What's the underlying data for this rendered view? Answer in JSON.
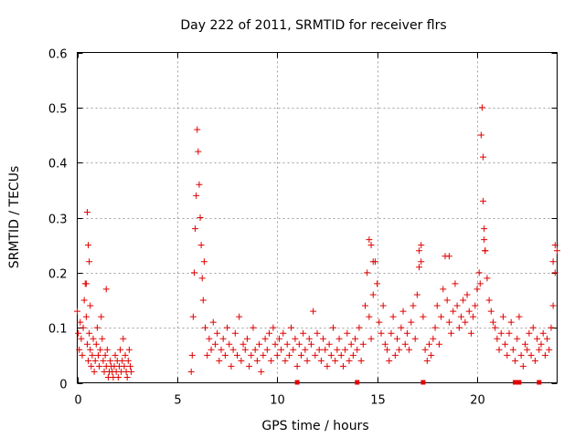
{
  "chart_data": {
    "type": "scatter",
    "title": "Day 222 of 2011, SRMTID for receiver flrs",
    "xlabel": "GPS time / hours",
    "ylabel": "SRMTID / TECUs",
    "xlim": [
      0,
      24
    ],
    "ylim": [
      0,
      0.6
    ],
    "x_ticks": [
      0,
      5,
      10,
      15,
      20
    ],
    "x_tick_labels": [
      "0",
      "5",
      "10",
      "15",
      "20"
    ],
    "y_ticks": [
      0,
      0.1,
      0.2,
      0.3,
      0.4,
      0.5,
      0.6
    ],
    "y_tick_labels": [
      "0",
      "0.1",
      "0.2",
      "0.3",
      "0.4",
      "0.5",
      "0.6"
    ],
    "grid": true,
    "marker": "+",
    "color": "#e00000",
    "series": [
      {
        "name": "SRMTID",
        "x": [
          0.0,
          0.05,
          0.1,
          0.15,
          0.2,
          0.25,
          0.3,
          0.35,
          0.4,
          0.45,
          0.5,
          0.55,
          0.6,
          0.65,
          0.7,
          0.75,
          0.8,
          0.85,
          0.9,
          0.95,
          1.0,
          1.05,
          1.1,
          1.15,
          1.2,
          1.25,
          1.3,
          1.35,
          1.4,
          1.45,
          1.5,
          1.55,
          1.6,
          1.65,
          1.7,
          1.75,
          1.8,
          1.85,
          1.9,
          1.95,
          2.0,
          2.05,
          2.1,
          2.15,
          2.2,
          2.25,
          2.3,
          2.35,
          2.4,
          2.45,
          2.5,
          2.55,
          2.6,
          2.65,
          2.7,
          0.5,
          0.55,
          0.6,
          0.45,
          0.65,
          1.45,
          5.7,
          5.75,
          5.8,
          5.85,
          5.9,
          5.95,
          6.0,
          6.05,
          6.1,
          6.15,
          6.2,
          6.25,
          6.3,
          6.35,
          6.4,
          6.5,
          6.6,
          6.7,
          6.8,
          6.9,
          7.0,
          7.1,
          7.2,
          7.3,
          7.4,
          7.5,
          7.6,
          7.7,
          7.8,
          7.9,
          8.0,
          8.1,
          8.2,
          8.3,
          8.4,
          8.5,
          8.6,
          8.7,
          8.8,
          8.9,
          9.0,
          9.1,
          9.2,
          9.3,
          9.4,
          9.5,
          9.6,
          9.7,
          9.8,
          9.9,
          10.0,
          10.1,
          10.2,
          10.3,
          10.4,
          10.5,
          10.6,
          10.7,
          10.8,
          10.9,
          11.0,
          11.1,
          11.2,
          11.3,
          11.4,
          11.5,
          11.6,
          11.7,
          11.8,
          11.9,
          12.0,
          12.1,
          12.2,
          12.3,
          12.4,
          12.5,
          12.6,
          12.7,
          12.8,
          12.9,
          13.0,
          13.1,
          13.2,
          13.3,
          13.4,
          13.5,
          13.6,
          13.7,
          13.8,
          13.9,
          14.0,
          14.1,
          14.2,
          14.3,
          14.4,
          14.5,
          14.6,
          14.7,
          14.8,
          14.9,
          15.0,
          15.1,
          15.2,
          15.3,
          15.4,
          15.5,
          15.6,
          15.7,
          15.8,
          15.9,
          16.0,
          16.1,
          16.2,
          16.3,
          16.4,
          16.5,
          16.6,
          16.7,
          16.8,
          16.9,
          17.0,
          17.1,
          17.2,
          17.3,
          17.4,
          17.5,
          17.6,
          17.7,
          17.8,
          17.9,
          18.0,
          18.1,
          18.2,
          18.3,
          18.4,
          18.5,
          18.6,
          18.7,
          18.8,
          18.9,
          19.0,
          19.1,
          19.2,
          19.3,
          19.4,
          19.5,
          19.6,
          19.7,
          19.8,
          19.9,
          20.0,
          20.1,
          20.15,
          20.2,
          20.25,
          20.3,
          20.35,
          20.4,
          20.5,
          20.6,
          20.7,
          20.8,
          20.9,
          21.0,
          21.1,
          21.2,
          21.3,
          21.4,
          21.5,
          21.6,
          21.7,
          21.8,
          21.9,
          22.0,
          22.1,
          22.2,
          22.3,
          22.4,
          22.5,
          22.6,
          22.7,
          22.8,
          22.9,
          23.0,
          23.1,
          23.2,
          23.3,
          23.4,
          23.5,
          23.6,
          23.7,
          23.8,
          23.9,
          24.0,
          14.6,
          14.7,
          14.8,
          17.1,
          17.2,
          18.6,
          20.3,
          20.35,
          20.4,
          23.8,
          23.9
        ],
        "y": [
          0.13,
          0.09,
          0.06,
          0.11,
          0.08,
          0.05,
          0.1,
          0.15,
          0.18,
          0.12,
          0.07,
          0.04,
          0.09,
          0.06,
          0.03,
          0.05,
          0.08,
          0.02,
          0.04,
          0.07,
          0.1,
          0.05,
          0.03,
          0.06,
          0.12,
          0.08,
          0.04,
          0.02,
          0.05,
          0.03,
          0.06,
          0.01,
          0.02,
          0.04,
          0.03,
          0.02,
          0.01,
          0.03,
          0.05,
          0.02,
          0.04,
          0.01,
          0.03,
          0.06,
          0.02,
          0.04,
          0.08,
          0.03,
          0.05,
          0.02,
          0.01,
          0.04,
          0.06,
          0.03,
          0.02,
          0.31,
          0.25,
          0.22,
          0.18,
          0.14,
          0.17,
          0.02,
          0.05,
          0.12,
          0.2,
          0.28,
          0.34,
          0.46,
          0.42,
          0.36,
          0.3,
          0.25,
          0.19,
          0.15,
          0.22,
          0.1,
          0.05,
          0.08,
          0.06,
          0.11,
          0.07,
          0.09,
          0.04,
          0.06,
          0.08,
          0.05,
          0.1,
          0.07,
          0.03,
          0.06,
          0.09,
          0.05,
          0.12,
          0.04,
          0.07,
          0.06,
          0.08,
          0.03,
          0.05,
          0.1,
          0.06,
          0.04,
          0.07,
          0.02,
          0.05,
          0.08,
          0.06,
          0.09,
          0.04,
          0.1,
          0.07,
          0.05,
          0.08,
          0.06,
          0.09,
          0.04,
          0.07,
          0.05,
          0.1,
          0.06,
          0.08,
          0.03,
          0.07,
          0.05,
          0.09,
          0.06,
          0.04,
          0.08,
          0.07,
          0.13,
          0.05,
          0.09,
          0.06,
          0.04,
          0.08,
          0.06,
          0.03,
          0.07,
          0.05,
          0.1,
          0.04,
          0.06,
          0.08,
          0.05,
          0.03,
          0.06,
          0.09,
          0.04,
          0.07,
          0.05,
          0.08,
          0.06,
          0.1,
          0.04,
          0.07,
          0.14,
          0.2,
          0.12,
          0.08,
          0.16,
          0.22,
          0.18,
          0.11,
          0.09,
          0.14,
          0.07,
          0.06,
          0.04,
          0.09,
          0.12,
          0.05,
          0.08,
          0.06,
          0.1,
          0.13,
          0.07,
          0.09,
          0.06,
          0.11,
          0.14,
          0.08,
          0.16,
          0.21,
          0.25,
          0.12,
          0.06,
          0.04,
          0.07,
          0.05,
          0.08,
          0.1,
          0.14,
          0.07,
          0.12,
          0.17,
          0.23,
          0.15,
          0.11,
          0.09,
          0.13,
          0.18,
          0.14,
          0.1,
          0.12,
          0.15,
          0.11,
          0.16,
          0.13,
          0.09,
          0.12,
          0.14,
          0.17,
          0.2,
          0.18,
          0.45,
          0.5,
          0.33,
          0.28,
          0.24,
          0.19,
          0.15,
          0.13,
          0.11,
          0.1,
          0.08,
          0.06,
          0.09,
          0.12,
          0.07,
          0.05,
          0.09,
          0.11,
          0.06,
          0.04,
          0.08,
          0.12,
          0.05,
          0.03,
          0.07,
          0.06,
          0.09,
          0.05,
          0.1,
          0.04,
          0.08,
          0.06,
          0.07,
          0.09,
          0.05,
          0.08,
          0.06,
          0.1,
          0.14,
          0.2,
          0.24,
          0.26,
          0.25,
          0.22,
          0.24,
          0.22,
          0.23,
          0.41,
          0.26,
          0.24,
          0.22,
          0.25
        ]
      }
    ],
    "baseline_markers_x": [
      11.0,
      14.0,
      17.3,
      21.9,
      22.1,
      23.1
    ]
  }
}
